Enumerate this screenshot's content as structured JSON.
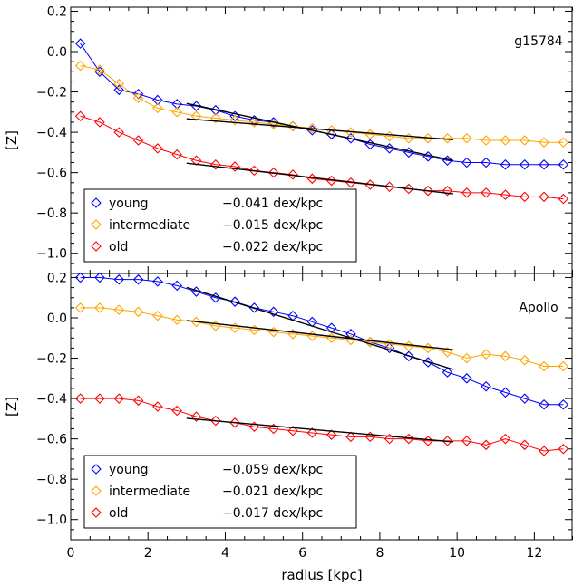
{
  "figure": {
    "xlabel": "radius [kpc]",
    "xlim": [
      0,
      13
    ],
    "xticks": [
      0,
      2,
      4,
      6,
      8,
      10,
      12
    ]
  },
  "chart_data": [
    {
      "type": "line",
      "title": "g15784",
      "xlabel": "radius [kpc]",
      "ylabel": "[Z]",
      "xlim": [
        0,
        13
      ],
      "ylim": [
        -1.1,
        0.22
      ],
      "yticks": [
        0.2,
        0.0,
        -0.2,
        -0.4,
        -0.6,
        -0.8,
        -1.0
      ],
      "ytick_labels": [
        "0.2",
        "0.0",
        "−0.2",
        "−0.4",
        "−0.6",
        "−0.8",
        "−1.0"
      ],
      "legend_position": "bottom-left",
      "series": [
        {
          "name": "young",
          "color": "#0000ff",
          "marker": "diamond",
          "slope_label": "−0.041 dex/kpc",
          "x": [
            0.25,
            0.75,
            1.25,
            1.75,
            2.25,
            2.75,
            3.25,
            3.75,
            4.25,
            4.75,
            5.25,
            5.75,
            6.25,
            6.75,
            7.25,
            7.75,
            8.25,
            8.75,
            9.25,
            9.75,
            10.25,
            10.75,
            11.25,
            11.75,
            12.25,
            12.75
          ],
          "y": [
            0.04,
            -0.1,
            -0.19,
            -0.21,
            -0.24,
            -0.26,
            -0.27,
            -0.29,
            -0.32,
            -0.34,
            -0.35,
            -0.37,
            -0.39,
            -0.41,
            -0.43,
            -0.46,
            -0.48,
            -0.5,
            -0.52,
            -0.54,
            -0.55,
            -0.55,
            -0.56,
            -0.56,
            -0.56,
            -0.56
          ],
          "fit": {
            "x": [
              3.0,
              9.9
            ],
            "y": [
              -0.257,
              -0.54
            ]
          }
        },
        {
          "name": "intermediate",
          "color": "#ffa500",
          "marker": "diamond",
          "slope_label": "−0.015 dex/kpc",
          "x": [
            0.25,
            0.75,
            1.25,
            1.75,
            2.25,
            2.75,
            3.25,
            3.75,
            4.25,
            4.75,
            5.25,
            5.75,
            6.25,
            6.75,
            7.25,
            7.75,
            8.25,
            8.75,
            9.25,
            9.75,
            10.25,
            10.75,
            11.25,
            11.75,
            12.25,
            12.75
          ],
          "y": [
            -0.07,
            -0.09,
            -0.16,
            -0.23,
            -0.28,
            -0.3,
            -0.32,
            -0.33,
            -0.34,
            -0.35,
            -0.36,
            -0.37,
            -0.38,
            -0.39,
            -0.4,
            -0.41,
            -0.42,
            -0.43,
            -0.43,
            -0.43,
            -0.43,
            -0.44,
            -0.44,
            -0.44,
            -0.45,
            -0.45
          ],
          "fit": {
            "x": [
              3.0,
              9.9
            ],
            "y": [
              -0.333,
              -0.437
            ]
          }
        },
        {
          "name": "old",
          "color": "#ff0000",
          "marker": "diamond",
          "slope_label": "−0.022 dex/kpc",
          "x": [
            0.25,
            0.75,
            1.25,
            1.75,
            2.25,
            2.75,
            3.25,
            3.75,
            4.25,
            4.75,
            5.25,
            5.75,
            6.25,
            6.75,
            7.25,
            7.75,
            8.25,
            8.75,
            9.25,
            9.75,
            10.25,
            10.75,
            11.25,
            11.75,
            12.25,
            12.75
          ],
          "y": [
            -0.32,
            -0.35,
            -0.4,
            -0.44,
            -0.48,
            -0.51,
            -0.54,
            -0.56,
            -0.57,
            -0.59,
            -0.6,
            -0.61,
            -0.63,
            -0.64,
            -0.65,
            -0.66,
            -0.67,
            -0.68,
            -0.69,
            -0.69,
            -0.7,
            -0.7,
            -0.71,
            -0.72,
            -0.72,
            -0.73
          ],
          "fit": {
            "x": [
              3.0,
              9.9
            ],
            "y": [
              -0.553,
              -0.705
            ]
          }
        }
      ]
    },
    {
      "type": "line",
      "title": "Apollo",
      "xlabel": "radius [kpc]",
      "ylabel": "[Z]",
      "xlim": [
        0,
        13
      ],
      "ylim": [
        -1.1,
        0.22
      ],
      "yticks": [
        0.2,
        0.0,
        -0.2,
        -0.4,
        -0.6,
        -0.8,
        -1.0
      ],
      "ytick_labels": [
        "0.2",
        "0.0",
        "−0.2",
        "−0.4",
        "−0.6",
        "−0.8",
        "−1.0"
      ],
      "legend_position": "bottom-left",
      "series": [
        {
          "name": "young",
          "color": "#0000ff",
          "marker": "diamond",
          "slope_label": "−0.059 dex/kpc",
          "x": [
            0.25,
            0.75,
            1.25,
            1.75,
            2.25,
            2.75,
            3.25,
            3.75,
            4.25,
            4.75,
            5.25,
            5.75,
            6.25,
            6.75,
            7.25,
            7.75,
            8.25,
            8.75,
            9.25,
            9.75,
            10.25,
            10.75,
            11.25,
            11.75,
            12.25,
            12.75
          ],
          "y": [
            0.2,
            0.2,
            0.19,
            0.19,
            0.18,
            0.16,
            0.13,
            0.1,
            0.08,
            0.05,
            0.03,
            0.01,
            -0.02,
            -0.05,
            -0.08,
            -0.12,
            -0.15,
            -0.19,
            -0.22,
            -0.27,
            -0.3,
            -0.34,
            -0.37,
            -0.4,
            -0.43,
            -0.43
          ],
          "fit": {
            "x": [
              3.0,
              9.9
            ],
            "y": [
              0.151,
              -0.256
            ]
          }
        },
        {
          "name": "intermediate",
          "color": "#ffa500",
          "marker": "diamond",
          "slope_label": "−0.021 dex/kpc",
          "x": [
            0.25,
            0.75,
            1.25,
            1.75,
            2.25,
            2.75,
            3.25,
            3.75,
            4.25,
            4.75,
            5.25,
            5.75,
            6.25,
            6.75,
            7.25,
            7.75,
            8.25,
            8.75,
            9.25,
            9.75,
            10.25,
            10.75,
            11.25,
            11.75,
            12.25,
            12.75
          ],
          "y": [
            0.05,
            0.05,
            0.04,
            0.03,
            0.01,
            -0.01,
            -0.02,
            -0.04,
            -0.05,
            -0.06,
            -0.07,
            -0.08,
            -0.09,
            -0.1,
            -0.11,
            -0.12,
            -0.13,
            -0.14,
            -0.15,
            -0.17,
            -0.2,
            -0.18,
            -0.19,
            -0.21,
            -0.24,
            -0.24
          ],
          "fit": {
            "x": [
              3.0,
              9.9
            ],
            "y": [
              -0.013,
              -0.158
            ]
          }
        },
        {
          "name": "old",
          "color": "#ff0000",
          "marker": "diamond",
          "slope_label": "−0.017 dex/kpc",
          "x": [
            0.25,
            0.75,
            1.25,
            1.75,
            2.25,
            2.75,
            3.25,
            3.75,
            4.25,
            4.75,
            5.25,
            5.75,
            6.25,
            6.75,
            7.25,
            7.75,
            8.25,
            8.75,
            9.25,
            9.75,
            10.25,
            10.75,
            11.25,
            11.75,
            12.25,
            12.75
          ],
          "y": [
            -0.4,
            -0.4,
            -0.4,
            -0.41,
            -0.44,
            -0.46,
            -0.49,
            -0.51,
            -0.52,
            -0.54,
            -0.55,
            -0.56,
            -0.57,
            -0.58,
            -0.59,
            -0.59,
            -0.6,
            -0.6,
            -0.61,
            -0.61,
            -0.61,
            -0.63,
            -0.6,
            -0.63,
            -0.66,
            -0.65
          ],
          "fit": {
            "x": [
              3.0,
              9.9
            ],
            "y": [
              -0.498,
              -0.615
            ]
          }
        }
      ]
    }
  ]
}
